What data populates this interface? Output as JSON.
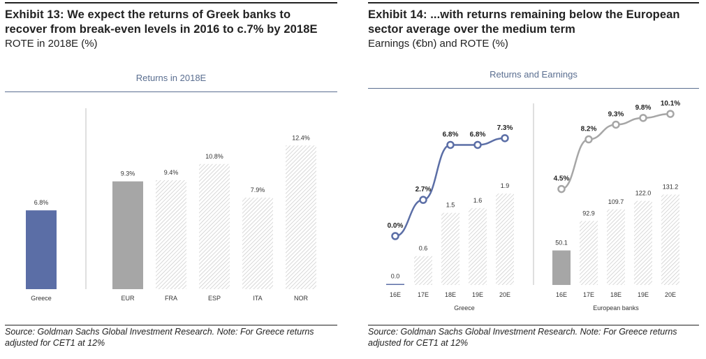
{
  "exhibit13": {
    "title_line1": "Exhibit 13: We expect the returns of Greek banks to",
    "title_line2": "recover from break-even levels in 2016 to c.7% by 2018E",
    "subtitle": "ROTE in 2018E (%)",
    "source_line1": "Source: Goldman Sachs Global Investment Research. Note: For Greece returns",
    "source_line2": "adjusted for CET1 at 12%"
  },
  "exhibit14": {
    "title_line1": "Exhibit 14: ...with returns remaining below the European",
    "title_line2": "sector average over the medium term",
    "subtitle": "Earnings (€bn) and ROTE (%)",
    "source_line1": "Source: Goldman Sachs Global Investment Research. Note: For Greece returns",
    "source_line2": "adjusted for CET1 at 12%"
  },
  "colors": {
    "greece": "#5b6ea6",
    "eur": "#a6a6a6",
    "hatch": "#c8c8c8",
    "line_grey": "#a6a6a6",
    "header": "#5a6e90"
  },
  "chart_data": [
    {
      "type": "bar",
      "title": "Returns in 2018E",
      "categories": [
        "Greece",
        "EUR",
        "FRA",
        "ESP",
        "ITA",
        "NOR"
      ],
      "values": [
        6.8,
        9.3,
        9.4,
        10.8,
        7.9,
        12.4
      ],
      "labels": [
        "6.8%",
        "9.3%",
        "9.4%",
        "10.8%",
        "7.9%",
        "12.4%"
      ],
      "styles": [
        "greece",
        "eur",
        "hatch",
        "hatch",
        "hatch",
        "hatch"
      ],
      "ylim": [
        0,
        13.5
      ]
    },
    {
      "type": "bar",
      "title": "Returns and  Earnings",
      "groups": [
        {
          "name": "Greece",
          "categories": [
            "16E",
            "17E",
            "18E",
            "19E",
            "20E"
          ],
          "earnings": [
            0.0,
            0.6,
            1.5,
            1.6,
            1.9
          ],
          "earnings_labels": [
            "0.0",
            "0.6",
            "1.5",
            "1.6",
            "1.9"
          ],
          "rote": [
            0.0,
            2.7,
            6.8,
            6.8,
            7.3
          ],
          "rote_labels": [
            "0.0%",
            "2.7%",
            "6.8%",
            "6.8%",
            "7.3%"
          ]
        },
        {
          "name": "European banks",
          "categories": [
            "16E",
            "17E",
            "18E",
            "19E",
            "20E"
          ],
          "earnings": [
            50.1,
            92.9,
            109.7,
            122.0,
            131.2
          ],
          "earnings_labels": [
            "50.1",
            "92.9",
            "109.7",
            "122.0",
            "131.2"
          ],
          "rote": [
            4.5,
            8.2,
            9.3,
            9.8,
            10.1
          ],
          "rote_labels": [
            "4.5%",
            "8.2%",
            "9.3%",
            "9.8%",
            "10.1%"
          ]
        }
      ]
    }
  ]
}
